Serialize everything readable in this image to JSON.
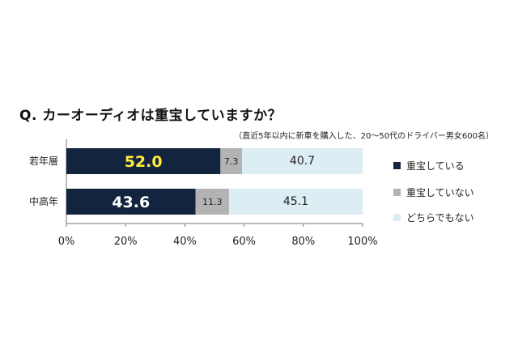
{
  "chart_data": {
    "type": "bar",
    "orientation": "horizontal",
    "stacked": true,
    "title": "Q. カーオーディオは重宝していますか？",
    "subtitle": "（直近5年以内に新車を購入した、20～50代のドライバー男女600名）",
    "categories": [
      "若年層",
      "中高年"
    ],
    "series": [
      {
        "name": "重宝している",
        "values": [
          52.0,
          43.6
        ],
        "color": "#13243f",
        "label_colors": [
          "#ffeb3b",
          "#ffffff"
        ]
      },
      {
        "name": "重宝していない",
        "values": [
          7.3,
          11.3
        ],
        "color": "#b3b3b3",
        "label_colors": [
          "#222222",
          "#222222"
        ]
      },
      {
        "name": "どちらでもない",
        "values": [
          40.7,
          45.1
        ],
        "color": "#dcedf4",
        "label_colors": [
          "#222222",
          "#222222"
        ]
      }
    ],
    "data_labels": [
      [
        "52.0",
        "7.3",
        "40.7"
      ],
      [
        "43.6",
        "11.3",
        "45.1"
      ]
    ],
    "x_ticks": [
      "0%",
      "20%",
      "40%",
      "60%",
      "80%",
      "100%"
    ],
    "xlim": [
      0,
      100
    ],
    "grid": false,
    "legend_position": "right"
  }
}
